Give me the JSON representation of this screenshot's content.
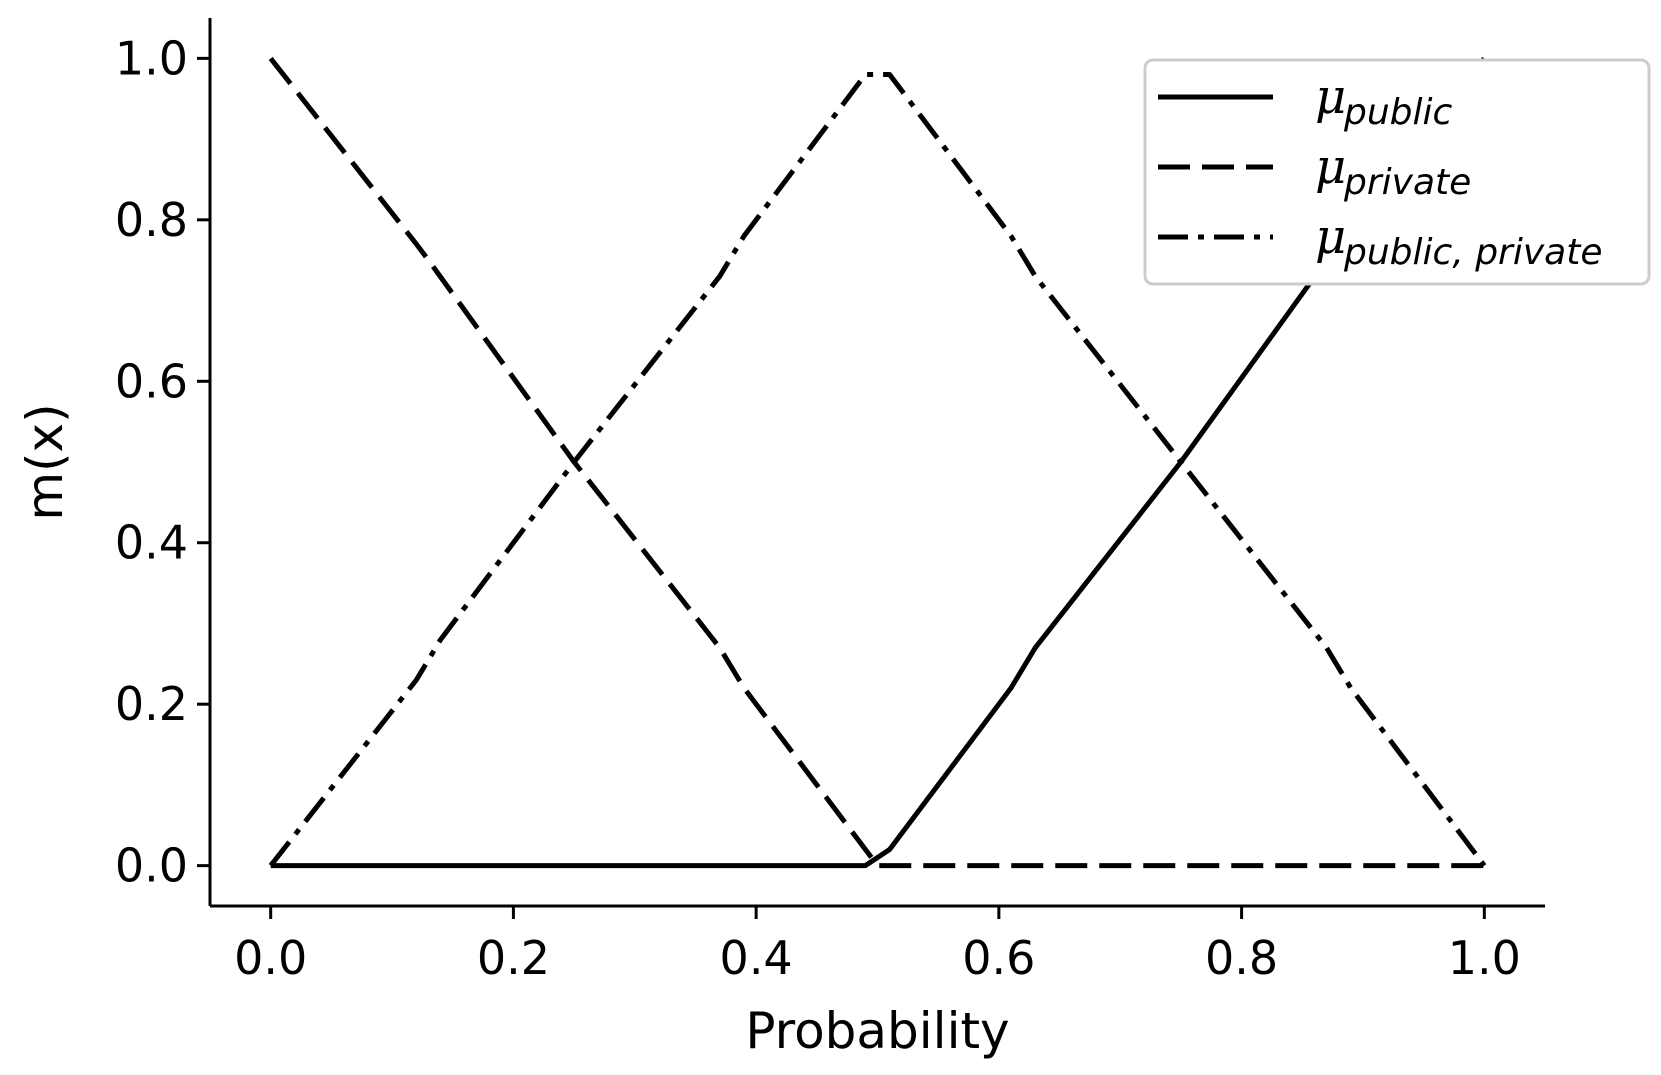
{
  "chart_data": {
    "type": "line",
    "title": "",
    "xlabel": "Probability",
    "ylabel": "m(x)",
    "xlim": [
      -0.05,
      1.05
    ],
    "ylim": [
      -0.05,
      1.05
    ],
    "xticks": [
      "0.0",
      "0.2",
      "0.4",
      "0.6",
      "0.8",
      "1.0"
    ],
    "yticks": [
      "0.0",
      "0.2",
      "0.4",
      "0.6",
      "0.8",
      "1.0"
    ],
    "grid": false,
    "legend_position": "top-right",
    "series": [
      {
        "name": "public",
        "style": "solid",
        "x": [
          0.0,
          0.49,
          0.51,
          0.61,
          0.63,
          0.75,
          0.87,
          1.0
        ],
        "y": [
          0.0,
          0.0,
          0.02,
          0.22,
          0.27,
          0.5,
          0.75,
          1.0
        ]
      },
      {
        "name": "private",
        "style": "dashed",
        "x": [
          0.0,
          0.12,
          0.13,
          0.25,
          0.37,
          0.39,
          0.5,
          1.0
        ],
        "y": [
          1.0,
          0.77,
          0.75,
          0.5,
          0.27,
          0.22,
          0.0,
          0.0
        ]
      },
      {
        "name": "public, private",
        "style": "dashdot",
        "x": [
          0.0,
          0.12,
          0.14,
          0.25,
          0.37,
          0.39,
          0.49,
          0.51,
          0.61,
          0.63,
          0.75,
          0.87,
          0.89,
          1.0
        ],
        "y": [
          0.0,
          0.23,
          0.28,
          0.5,
          0.73,
          0.78,
          0.98,
          0.98,
          0.78,
          0.73,
          0.5,
          0.27,
          0.22,
          0.0
        ]
      }
    ]
  },
  "legend": {
    "symbol": "μ",
    "entries": [
      {
        "sub": "public",
        "style": "solid"
      },
      {
        "sub": "private",
        "style": "dashed"
      },
      {
        "sub": "public, private",
        "style": "dashdot"
      }
    ]
  },
  "colors": {
    "line": "#000000",
    "background": "#ffffff",
    "legend_border": "#cccccc"
  }
}
